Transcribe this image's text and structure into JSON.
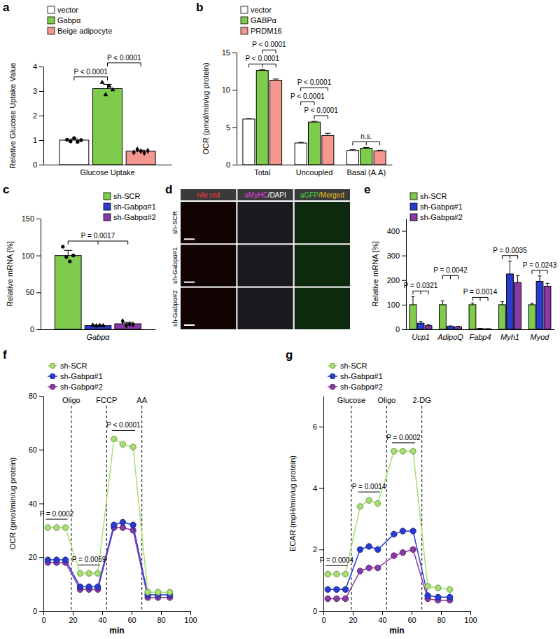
{
  "chart_data": [
    {
      "type": "bar",
      "title": "a",
      "y_label": "Relative Glucose Uptake Value",
      "categories": [
        "Glucose Uptake"
      ],
      "ylim": [
        0,
        4
      ],
      "yticks": [
        0,
        1,
        2,
        3,
        4
      ],
      "legend": "top-left",
      "series": [
        {
          "name": "vector",
          "color": "#ffffff",
          "marker": "circle",
          "values": [
            1.0
          ],
          "errors": [
            0.05
          ],
          "points": [
            [
              1.02,
              0.95,
              1.08,
              0.93,
              1.0
            ]
          ]
        },
        {
          "name": "Gabpα",
          "color": "#7fcc4d",
          "marker": "triangle",
          "values": [
            3.1
          ],
          "errors": [
            0.17
          ],
          "points": [
            [
              3.35,
              2.85,
              3.2,
              3.05
            ]
          ]
        },
        {
          "name": "Beige adipocyte",
          "color": "#f4978e",
          "marker": "diamond",
          "values": [
            0.55
          ],
          "errors": [
            0.04
          ],
          "points": [
            [
              0.5,
              0.62,
              0.55,
              0.48,
              0.57
            ]
          ]
        }
      ],
      "annotations": [
        {
          "text": "P < 0.0001",
          "category": 0,
          "from": 0,
          "to": [
            1
          ]
        },
        {
          "text": "P < 0.0001",
          "category": 0,
          "from": 1,
          "to": [
            2
          ]
        }
      ]
    },
    {
      "type": "bar",
      "title": "b",
      "y_label": "OCR (pmol/min/ug protein)",
      "categories": [
        "Total",
        "Uncoupled",
        "Basal (A.A)"
      ],
      "ylim": [
        0,
        15
      ],
      "yticks": [
        0,
        5,
        10,
        15
      ],
      "legend": "top-left",
      "series": [
        {
          "name": "vector",
          "color": "#ffffff",
          "values": [
            6.1,
            2.9,
            1.9
          ],
          "errors": [
            0.05,
            0.08,
            0.1
          ]
        },
        {
          "name": "GABPα",
          "color": "#7fcc4d",
          "values": [
            12.6,
            5.7,
            2.2
          ],
          "errors": [
            0.12,
            0.1,
            0.1
          ]
        },
        {
          "name": "PRDM16",
          "color": "#f4978e",
          "values": [
            11.3,
            3.9,
            1.85
          ],
          "errors": [
            0.15,
            0.3,
            0.08
          ]
        }
      ],
      "annotations": [
        {
          "text": "P < 0.0001",
          "category": 0,
          "from": 0,
          "to": [
            1,
            2
          ]
        },
        {
          "text": "P < 0.0001",
          "category": 0,
          "from": 1,
          "to": [
            2
          ]
        },
        {
          "text": "P < 0.0001",
          "category": 1,
          "from": 1,
          "to": [
            2
          ]
        },
        {
          "text": "P < 0.0001",
          "category": 1,
          "from": 0,
          "to": [
            1
          ]
        },
        {
          "text": "P < 0.0001",
          "category": 1,
          "from": 0,
          "to": [
            2
          ]
        },
        {
          "text": "n.s.",
          "category": 2,
          "from": 0,
          "to": [
            1,
            2
          ]
        }
      ]
    },
    {
      "type": "bar",
      "title": "c",
      "y_label": "Relative mRNA [%]",
      "categories": [
        "Gabpα"
      ],
      "ylim": [
        0,
        150
      ],
      "yticks": [
        0,
        50,
        100,
        150
      ],
      "legend": "top-right",
      "series": [
        {
          "name": "sh-SCR",
          "color": "#7fcc4d",
          "marker": "circle",
          "values": [
            100
          ],
          "errors": [
            7
          ],
          "points": [
            [
              112,
              98,
              92,
              100
            ]
          ]
        },
        {
          "name": "sh-Gabpα#1",
          "color": "#2a3bd0",
          "marker": "triangle",
          "values": [
            5
          ],
          "errors": [
            0.5
          ],
          "points": [
            [
              5.5,
              4.6,
              5.2,
              4.8
            ]
          ]
        },
        {
          "name": "sh-Gabpα#2",
          "color": "#8a3aa6",
          "marker": "diamond",
          "values": [
            7.5
          ],
          "errors": [
            1.8
          ],
          "points": [
            [
              11,
              5,
              7,
              6.5
            ]
          ]
        }
      ],
      "annotations": [
        {
          "text": "P = 0.0017",
          "category": 0,
          "from": 0,
          "to": [
            1,
            2
          ]
        }
      ]
    },
    {
      "type": "image_grid",
      "title": "d",
      "columns": [
        "nile red",
        "aMyHC/DAPI",
        "aGFP/Merged"
      ],
      "rows": [
        "sh-SCR",
        "sh-Gabpα#1",
        "sh-Gabpα#2"
      ]
    },
    {
      "type": "bar",
      "title": "e",
      "y_label": "Relative mRNA [%]",
      "categories": [
        "Ucp1",
        "AdipoQ",
        "Fabp4",
        "Myh1",
        "Myod"
      ],
      "ylim": [
        0,
        450
      ],
      "yticks": [
        0,
        100,
        200,
        300,
        400
      ],
      "legend": "top-left",
      "series": [
        {
          "name": "sh-SCR",
          "color": "#7fcc4d",
          "values": [
            100,
            100,
            100,
            100,
            100
          ],
          "errors": [
            33,
            16,
            7,
            12,
            6
          ]
        },
        {
          "name": "sh-Gabpα#1",
          "color": "#2a3bd0",
          "values": [
            25,
            12,
            3,
            225,
            195
          ],
          "errors": [
            7,
            2,
            0.8,
            52,
            22
          ]
        },
        {
          "name": "sh-Gabpα#2",
          "color": "#8a3aa6",
          "values": [
            15,
            10,
            2,
            190,
            175
          ],
          "errors": [
            4,
            2,
            0.6,
            28,
            12
          ]
        }
      ],
      "annotations": [
        {
          "text": "P = 0.0321",
          "category": 0,
          "from": 0,
          "to": [
            1,
            2
          ]
        },
        {
          "text": "P = 0.0042",
          "category": 1,
          "from": 0,
          "to": [
            1,
            2
          ]
        },
        {
          "text": "P = 0.0014",
          "category": 2,
          "from": 0,
          "to": [
            1,
            2
          ]
        },
        {
          "text": "P = 0.0035",
          "category": 3,
          "from": 0,
          "to": [
            1,
            2
          ]
        },
        {
          "text": "P = 0.0243",
          "category": 4,
          "from": 0,
          "to": [
            1,
            2
          ]
        }
      ]
    },
    {
      "type": "line",
      "title": "f",
      "x_label": "min",
      "y_label": "OCR (pmol/min/ug protein)",
      "marker": "circle",
      "legend": "top-left",
      "x": [
        3,
        9,
        15,
        25,
        31,
        37,
        48,
        54,
        61,
        71,
        78,
        86
      ],
      "xlim": [
        0,
        100
      ],
      "xticks": [
        0,
        20,
        40,
        60,
        80,
        100
      ],
      "ylim": [
        0,
        80
      ],
      "yticks": [
        0,
        20,
        40,
        60,
        80
      ],
      "events": [
        {
          "label": "Oligo",
          "x": 19
        },
        {
          "label": "FCCP",
          "x": 43
        },
        {
          "label": "AA",
          "x": 67
        }
      ],
      "series": [
        {
          "name": "sh-SCR",
          "color": "#a6e070",
          "values": [
            31,
            31,
            31,
            14,
            14,
            14,
            64,
            62,
            61,
            7,
            7,
            7
          ]
        },
        {
          "name": "sh-Gabpα#1",
          "color": "#2a3bd0",
          "values": [
            19,
            19,
            19,
            9,
            9,
            9,
            32,
            33,
            32,
            6,
            6,
            6
          ]
        },
        {
          "name": "sh-Gabpα#2",
          "color": "#8a3aa6",
          "values": [
            18,
            18,
            18,
            8,
            8,
            8,
            31,
            31,
            30,
            5,
            5,
            5
          ]
        }
      ],
      "annotations": [
        {
          "text": "P = 0.0002",
          "from": 0,
          "to": 2
        },
        {
          "text": "P = 0.0059",
          "from": 3,
          "to": 5
        },
        {
          "text": "P < 0.0001",
          "from": 6,
          "to": 8
        }
      ]
    },
    {
      "type": "line",
      "title": "g",
      "x_label": "min",
      "y_label": "ECAR (mpH/min/ug protein)",
      "marker": "circle",
      "legend": "top-left",
      "x": [
        3,
        9,
        15,
        25,
        31,
        37,
        48,
        54,
        61,
        71,
        78,
        86
      ],
      "xlim": [
        0,
        100
      ],
      "xticks": [
        0,
        20,
        40,
        60,
        80,
        100
      ],
      "ylim": [
        0,
        7
      ],
      "yticks": [
        0,
        2,
        4,
        6
      ],
      "events": [
        {
          "label": "Glucose",
          "x": 19
        },
        {
          "label": "Oligo",
          "x": 43
        },
        {
          "label": "2-DG",
          "x": 67
        }
      ],
      "series": [
        {
          "name": "sh-SCR",
          "color": "#a6e070",
          "values": [
            1.2,
            1.2,
            1.2,
            3.4,
            3.6,
            3.5,
            5.2,
            5.2,
            5.2,
            0.8,
            0.75,
            0.7
          ]
        },
        {
          "name": "sh-Gabpα#1",
          "color": "#2a3bd0",
          "values": [
            0.7,
            0.7,
            0.7,
            2.0,
            2.1,
            2.0,
            2.5,
            2.6,
            2.6,
            0.5,
            0.45,
            0.45
          ]
        },
        {
          "name": "sh-Gabpα#2",
          "color": "#8a3aa6",
          "values": [
            0.4,
            0.4,
            0.4,
            1.3,
            1.4,
            1.4,
            1.8,
            1.9,
            2.0,
            0.4,
            0.35,
            0.35
          ]
        }
      ],
      "annotations": [
        {
          "text": "P = 0.0004",
          "from": 0,
          "to": 2
        },
        {
          "text": "P = 0.0014",
          "from": 3,
          "to": 5
        },
        {
          "text": "P = 0.0002",
          "from": 6,
          "to": 8
        }
      ]
    }
  ]
}
